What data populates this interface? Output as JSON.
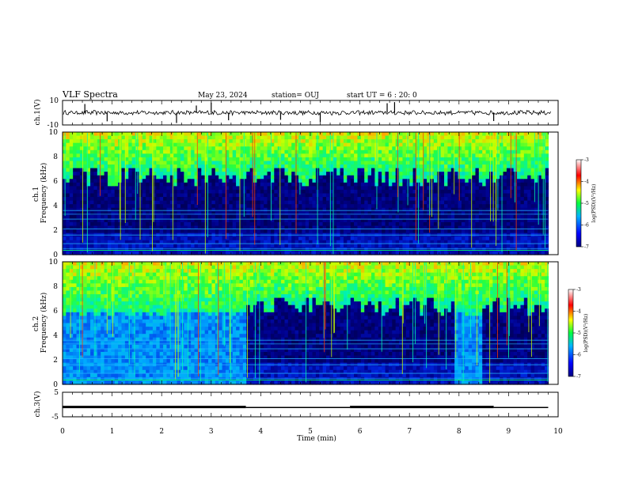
{
  "header": {
    "title": "VLF Spectra",
    "date": "May 23, 2024",
    "station": "station= OUJ",
    "start": "start  UT =  6 : 20: 0"
  },
  "chart_data": [
    {
      "type": "line",
      "ylabel": "ch.1(V)",
      "ylim": [
        -10,
        10
      ],
      "yticks": [
        "10",
        "-10"
      ],
      "baseline": 0,
      "xlim": [
        0,
        10
      ]
    },
    {
      "type": "heatmap",
      "ylabel": "ch.1\nFrequency (kHz)",
      "ylim": [
        0,
        10
      ],
      "yticks": [
        "0",
        "2",
        "4",
        "6",
        "8",
        "10"
      ],
      "xlim": [
        0,
        10
      ],
      "data_extent_min": 9.8,
      "colorbar": {
        "label": "log(PSD)(V²/Hz)",
        "range": [
          -7,
          -3
        ],
        "ticks": [
          "-3",
          "-4",
          "-5",
          "-6",
          "-7"
        ]
      }
    },
    {
      "type": "heatmap",
      "ylabel": "ch.2\nFrequency (kHz)",
      "ylim": [
        0,
        10
      ],
      "yticks": [
        "0",
        "2",
        "4",
        "6",
        "8",
        "10"
      ],
      "xlim": [
        0,
        10
      ],
      "data_extent_min": 9.8,
      "elevated_noise_intervals_min": [
        [
          0,
          3.7
        ],
        [
          7.9,
          8.5
        ]
      ],
      "colorbar": {
        "label": "log(PSD)(V²/Hz)",
        "range": [
          -7,
          -3
        ],
        "ticks": [
          "-3",
          "-4",
          "-5",
          "-6",
          "-7"
        ]
      }
    },
    {
      "type": "line",
      "ylabel": "ch.3(V)",
      "ylim": [
        -5,
        5
      ],
      "yticks": [
        "5",
        "0",
        "-5"
      ],
      "xlim": [
        0,
        10
      ],
      "segments": [
        {
          "x": [
            0,
            3.7
          ],
          "y": -1.0
        },
        {
          "x": [
            3.7,
            5.8
          ],
          "y": -1.2
        },
        {
          "x": [
            5.8,
            8.7
          ],
          "y": -1.0
        },
        {
          "x": [
            8.7,
            9.8
          ],
          "y": -1.2
        }
      ]
    }
  ],
  "xaxis": {
    "label": "Time  (min)",
    "ticks": [
      "0",
      "1",
      "2",
      "3",
      "4",
      "5",
      "6",
      "7",
      "8",
      "9",
      "10"
    ]
  }
}
